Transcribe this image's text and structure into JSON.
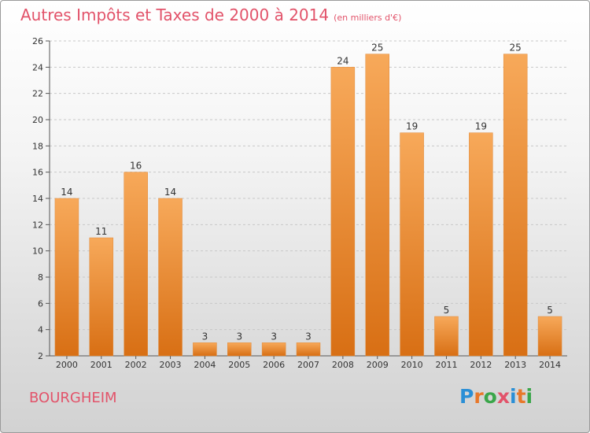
{
  "title": "Autres Impôts et Taxes de 2000 à 2014",
  "title_unit": "(en milliers d'€)",
  "place": "BOURGHEIM",
  "logo": {
    "text": "Proxiti",
    "letter_colors": [
      "#2a8fd6",
      "#e8782a",
      "#3aa64a",
      "#e2536a",
      "#2a8fd6",
      "#e8782a",
      "#3aa64a"
    ]
  },
  "colors": {
    "bar_top": "#f7a95a",
    "bar_bottom": "#d86f14",
    "axis": "#555555",
    "grid": "#c8c8c8",
    "text": "#333333"
  },
  "chart_data": {
    "type": "bar",
    "categories": [
      "2000",
      "2001",
      "2002",
      "2003",
      "2004",
      "2005",
      "2006",
      "2007",
      "2008",
      "2009",
      "2010",
      "2011",
      "2012",
      "2013",
      "2014"
    ],
    "values": [
      14,
      11,
      16,
      14,
      3,
      3,
      3,
      3,
      24,
      25,
      19,
      5,
      19,
      25,
      5
    ],
    "ylim": [
      2,
      26
    ],
    "yticks": [
      2,
      4,
      6,
      8,
      10,
      12,
      14,
      16,
      18,
      20,
      22,
      24,
      26
    ],
    "grid": "horizontal dashed",
    "data_labels": true
  }
}
